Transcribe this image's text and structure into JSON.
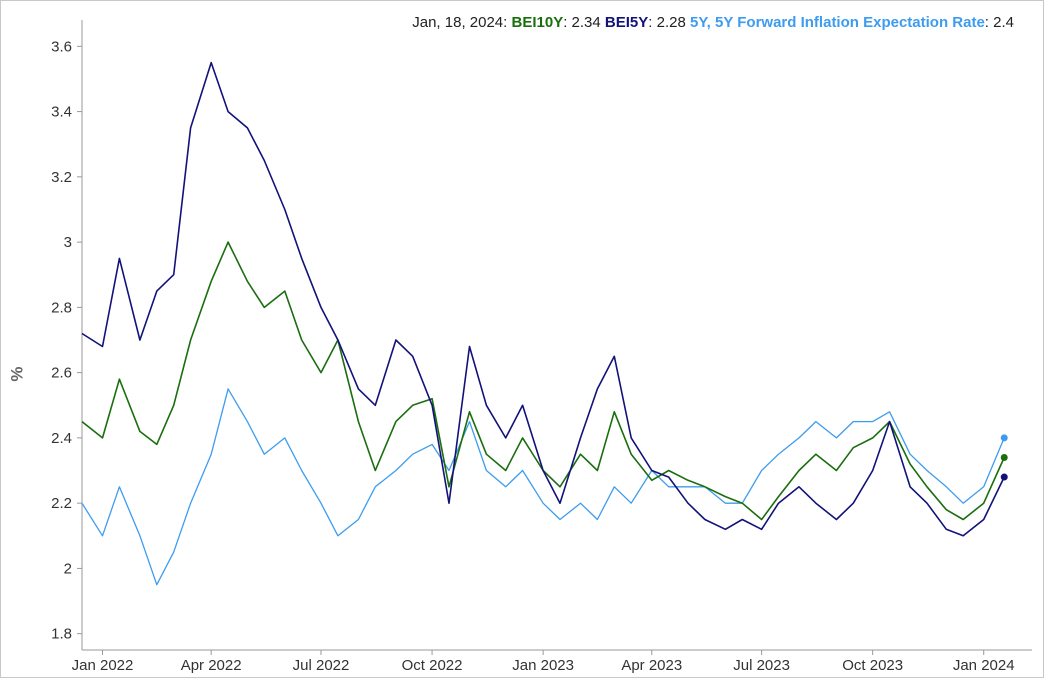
{
  "legend": {
    "date": "Jan, 18, 2024",
    "s1_name": "BEI10Y",
    "s1_value": "2.34",
    "s2_name": "BEI5Y",
    "s2_value": "2.28",
    "s3_name": "5Y, 5Y Forward Inflation Expectation Rate",
    "s3_value": "2.4"
  },
  "colors": {
    "bei10y": "#1a6e0e",
    "bei5y": "#12127a",
    "fwd": "#3d9cf0",
    "axis": "#999999"
  },
  "chart_data": {
    "type": "line",
    "xlabel": "",
    "ylabel": "%",
    "ylim": [
      1.75,
      3.65
    ],
    "y_ticks": [
      "1.8",
      "2",
      "2.2",
      "2.4",
      "2.6",
      "2.8",
      "3",
      "3.2",
      "3.4",
      "3.6"
    ],
    "x_ticks": [
      "Jan 2022",
      "Apr 2022",
      "Jul 2022",
      "Oct 2022",
      "Jan 2023",
      "Apr 2023",
      "Jul 2023",
      "Oct 2023",
      "Jan 2024"
    ],
    "xlim": [
      "2021-12-15",
      "2024-02-10"
    ],
    "grid": false,
    "legend_position": "top-right",
    "series": [
      {
        "name": "BEI10Y",
        "color": "#1a6e0e",
        "x": [
          "2021-12-15",
          "2022-01-01",
          "2022-01-15",
          "2022-02-01",
          "2022-02-15",
          "2022-03-01",
          "2022-03-15",
          "2022-04-01",
          "2022-04-15",
          "2022-05-01",
          "2022-05-15",
          "2022-06-01",
          "2022-06-15",
          "2022-07-01",
          "2022-07-15",
          "2022-08-01",
          "2022-08-15",
          "2022-09-01",
          "2022-09-15",
          "2022-10-01",
          "2022-10-15",
          "2022-11-01",
          "2022-11-15",
          "2022-12-01",
          "2022-12-15",
          "2023-01-01",
          "2023-01-15",
          "2023-02-01",
          "2023-02-15",
          "2023-03-01",
          "2023-03-15",
          "2023-04-01",
          "2023-04-15",
          "2023-05-01",
          "2023-05-15",
          "2023-06-01",
          "2023-06-15",
          "2023-07-01",
          "2023-07-15",
          "2023-08-01",
          "2023-08-15",
          "2023-09-01",
          "2023-09-15",
          "2023-10-01",
          "2023-10-15",
          "2023-11-01",
          "2023-11-15",
          "2023-12-01",
          "2023-12-15",
          "2024-01-01",
          "2024-01-18"
        ],
        "values": [
          2.45,
          2.4,
          2.58,
          2.42,
          2.38,
          2.5,
          2.7,
          2.88,
          3.0,
          2.88,
          2.8,
          2.85,
          2.7,
          2.6,
          2.7,
          2.45,
          2.3,
          2.45,
          2.5,
          2.52,
          2.25,
          2.48,
          2.35,
          2.3,
          2.4,
          2.3,
          2.25,
          2.35,
          2.3,
          2.48,
          2.35,
          2.27,
          2.3,
          2.27,
          2.25,
          2.22,
          2.2,
          2.15,
          2.22,
          2.3,
          2.35,
          2.3,
          2.37,
          2.4,
          2.45,
          2.32,
          2.25,
          2.18,
          2.15,
          2.2,
          2.34
        ]
      },
      {
        "name": "BEI5Y",
        "color": "#12127a",
        "x": [
          "2021-12-15",
          "2022-01-01",
          "2022-01-15",
          "2022-02-01",
          "2022-02-15",
          "2022-03-01",
          "2022-03-15",
          "2022-04-01",
          "2022-04-15",
          "2022-05-01",
          "2022-05-15",
          "2022-06-01",
          "2022-06-15",
          "2022-07-01",
          "2022-07-15",
          "2022-08-01",
          "2022-08-15",
          "2022-09-01",
          "2022-09-15",
          "2022-10-01",
          "2022-10-15",
          "2022-11-01",
          "2022-11-15",
          "2022-12-01",
          "2022-12-15",
          "2023-01-01",
          "2023-01-15",
          "2023-02-01",
          "2023-02-15",
          "2023-03-01",
          "2023-03-15",
          "2023-04-01",
          "2023-04-15",
          "2023-05-01",
          "2023-05-15",
          "2023-06-01",
          "2023-06-15",
          "2023-07-01",
          "2023-07-15",
          "2023-08-01",
          "2023-08-15",
          "2023-09-01",
          "2023-09-15",
          "2023-10-01",
          "2023-10-15",
          "2023-11-01",
          "2023-11-15",
          "2023-12-01",
          "2023-12-15",
          "2024-01-01",
          "2024-01-18"
        ],
        "values": [
          2.72,
          2.68,
          2.95,
          2.7,
          2.85,
          2.9,
          3.35,
          3.55,
          3.4,
          3.35,
          3.25,
          3.1,
          2.95,
          2.8,
          2.7,
          2.55,
          2.5,
          2.7,
          2.65,
          2.5,
          2.2,
          2.68,
          2.5,
          2.4,
          2.5,
          2.3,
          2.2,
          2.4,
          2.55,
          2.65,
          2.4,
          2.3,
          2.28,
          2.2,
          2.15,
          2.12,
          2.15,
          2.12,
          2.2,
          2.25,
          2.2,
          2.15,
          2.2,
          2.3,
          2.45,
          2.25,
          2.2,
          2.12,
          2.1,
          2.15,
          2.28
        ]
      },
      {
        "name": "5Y, 5Y Forward Inflation Expectation Rate",
        "color": "#3d9cf0",
        "x": [
          "2021-12-15",
          "2022-01-01",
          "2022-01-15",
          "2022-02-01",
          "2022-02-15",
          "2022-03-01",
          "2022-03-15",
          "2022-04-01",
          "2022-04-15",
          "2022-05-01",
          "2022-05-15",
          "2022-06-01",
          "2022-06-15",
          "2022-07-01",
          "2022-07-15",
          "2022-08-01",
          "2022-08-15",
          "2022-09-01",
          "2022-09-15",
          "2022-10-01",
          "2022-10-15",
          "2022-11-01",
          "2022-11-15",
          "2022-12-01",
          "2022-12-15",
          "2023-01-01",
          "2023-01-15",
          "2023-02-01",
          "2023-02-15",
          "2023-03-01",
          "2023-03-15",
          "2023-04-01",
          "2023-04-15",
          "2023-05-01",
          "2023-05-15",
          "2023-06-01",
          "2023-06-15",
          "2023-07-01",
          "2023-07-15",
          "2023-08-01",
          "2023-08-15",
          "2023-09-01",
          "2023-09-15",
          "2023-10-01",
          "2023-10-15",
          "2023-11-01",
          "2023-11-15",
          "2023-12-01",
          "2023-12-15",
          "2024-01-01",
          "2024-01-18"
        ],
        "values": [
          2.2,
          2.1,
          2.25,
          2.1,
          1.95,
          2.05,
          2.2,
          2.35,
          2.55,
          2.45,
          2.35,
          2.4,
          2.3,
          2.2,
          2.1,
          2.15,
          2.25,
          2.3,
          2.35,
          2.38,
          2.3,
          2.45,
          2.3,
          2.25,
          2.3,
          2.2,
          2.15,
          2.2,
          2.15,
          2.25,
          2.2,
          2.3,
          2.25,
          2.25,
          2.25,
          2.2,
          2.2,
          2.3,
          2.35,
          2.4,
          2.45,
          2.4,
          2.45,
          2.45,
          2.48,
          2.35,
          2.3,
          2.25,
          2.2,
          2.25,
          2.4
        ]
      }
    ]
  }
}
